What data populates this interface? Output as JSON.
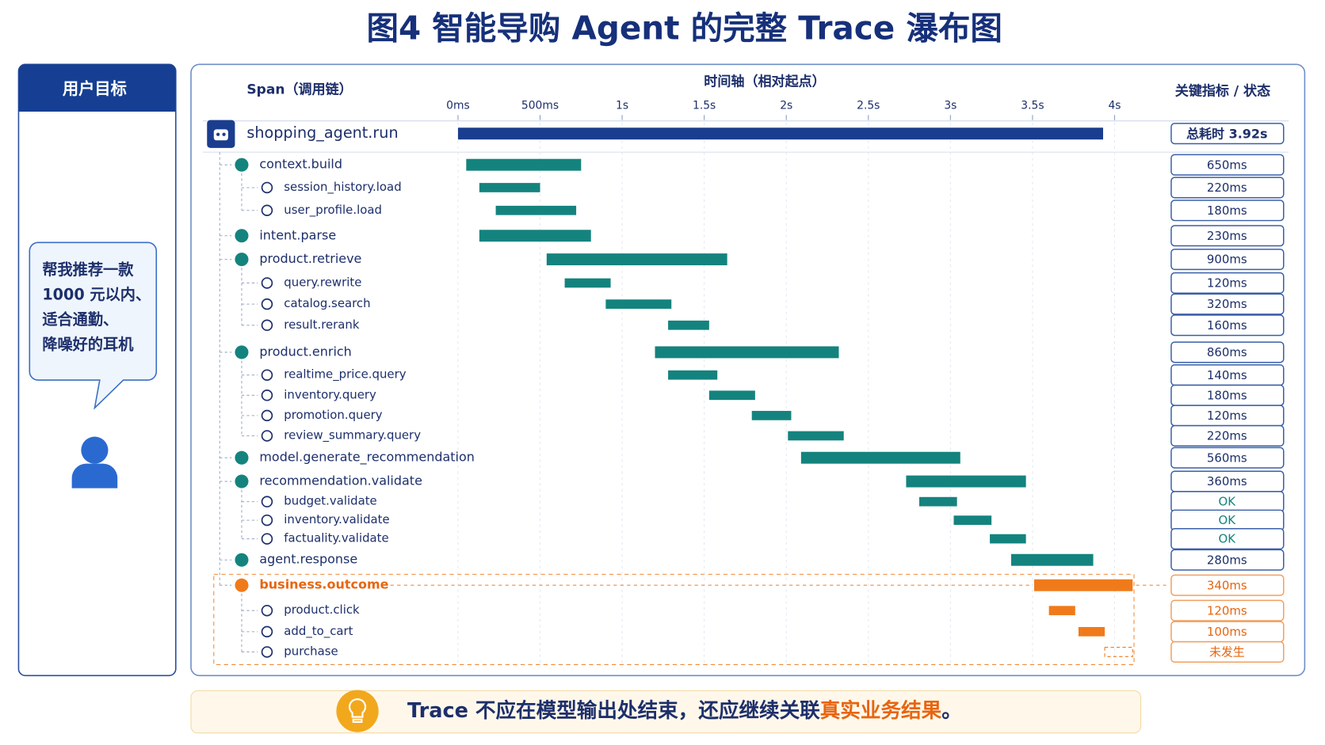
{
  "title": "图4 智能导购 Agent 的完整 Trace 瀑布图",
  "panel": {
    "header": "用户目标",
    "bubble_lines": [
      "帮我推荐一款",
      "1000 元以内、",
      "适合通勤、",
      "降噪好的耳机"
    ]
  },
  "chart_data": {
    "type": "gantt",
    "span_header": "Span（调用链）",
    "axis_title": "时间轴（相对起点）",
    "metric_header": "关键指标 / 状态",
    "xlim": [
      0,
      4000
    ],
    "xticks": [
      {
        "value": 0,
        "label": "0ms"
      },
      {
        "value": 500,
        "label": "500ms"
      },
      {
        "value": 1000,
        "label": "1s"
      },
      {
        "value": 1500,
        "label": "1.5s"
      },
      {
        "value": 2000,
        "label": "2s"
      },
      {
        "value": 2500,
        "label": "2.5s"
      },
      {
        "value": 3000,
        "label": "3s"
      },
      {
        "value": 3500,
        "label": "3.5s"
      },
      {
        "value": 4000,
        "label": "4s"
      }
    ],
    "grid": true,
    "spans": [
      {
        "name": "shopping_agent.run",
        "level": 0,
        "start": 0,
        "end": 3930,
        "color": "#1a3d8f",
        "metric": "总耗时 3.92s"
      },
      {
        "name": "context.build",
        "level": 1,
        "start": 50,
        "end": 750,
        "color": "#14837e",
        "metric": "650ms"
      },
      {
        "name": "session_history.load",
        "level": 2,
        "start": 130,
        "end": 500,
        "color": "#14837e",
        "metric": "220ms"
      },
      {
        "name": "user_profile.load",
        "level": 2,
        "start": 230,
        "end": 720,
        "color": "#14837e",
        "metric": "180ms"
      },
      {
        "name": "intent.parse",
        "level": 1,
        "start": 130,
        "end": 810,
        "color": "#14837e",
        "metric": "230ms"
      },
      {
        "name": "product.retrieve",
        "level": 1,
        "start": 540,
        "end": 1640,
        "color": "#14837e",
        "metric": "900ms"
      },
      {
        "name": "query.rewrite",
        "level": 2,
        "start": 650,
        "end": 930,
        "color": "#14837e",
        "metric": "120ms"
      },
      {
        "name": "catalog.search",
        "level": 2,
        "start": 900,
        "end": 1300,
        "color": "#14837e",
        "metric": "320ms"
      },
      {
        "name": "result.rerank",
        "level": 2,
        "start": 1280,
        "end": 1530,
        "color": "#14837e",
        "metric": "160ms"
      },
      {
        "name": "product.enrich",
        "level": 1,
        "start": 1200,
        "end": 2320,
        "color": "#14837e",
        "metric": "860ms"
      },
      {
        "name": "realtime_price.query",
        "level": 2,
        "start": 1280,
        "end": 1580,
        "color": "#14837e",
        "metric": "140ms"
      },
      {
        "name": "inventory.query",
        "level": 2,
        "start": 1530,
        "end": 1810,
        "color": "#14837e",
        "metric": "180ms"
      },
      {
        "name": "promotion.query",
        "level": 2,
        "start": 1790,
        "end": 2030,
        "color": "#14837e",
        "metric": "120ms"
      },
      {
        "name": "review_summary.query",
        "level": 2,
        "start": 2010,
        "end": 2350,
        "color": "#14837e",
        "metric": "220ms"
      },
      {
        "name": "model.generate_recommendation",
        "level": 1,
        "start": 2090,
        "end": 3060,
        "color": "#14837e",
        "metric": "560ms"
      },
      {
        "name": "recommendation.validate",
        "level": 1,
        "start": 2730,
        "end": 3460,
        "color": "#14837e",
        "metric": "360ms"
      },
      {
        "name": "budget.validate",
        "level": 2,
        "start": 2810,
        "end": 3040,
        "color": "#14837e",
        "metric": "OK"
      },
      {
        "name": "inventory.validate",
        "level": 2,
        "start": 3020,
        "end": 3250,
        "color": "#14837e",
        "metric": "OK"
      },
      {
        "name": "factuality.validate",
        "level": 2,
        "start": 3240,
        "end": 3460,
        "color": "#14837e",
        "metric": "OK"
      },
      {
        "name": "agent.response",
        "level": 1,
        "start": 3370,
        "end": 3870,
        "color": "#14837e",
        "metric": "280ms"
      },
      {
        "name": "business.outcome",
        "level": 1,
        "start": 3510,
        "end": 4110,
        "color": "#f07a1a",
        "metric": "340ms"
      },
      {
        "name": "product.click",
        "level": 2,
        "start": 3600,
        "end": 3760,
        "color": "#f07a1a",
        "metric": "120ms"
      },
      {
        "name": "add_to_cart",
        "level": 2,
        "start": 3780,
        "end": 3940,
        "color": "#f07a1a",
        "metric": "100ms"
      },
      {
        "name": "purchase",
        "level": 2,
        "start": 3940,
        "end": 4110,
        "color": "#f07a1a",
        "metric": "未发生",
        "style": "dashed"
      }
    ]
  },
  "footer": {
    "parts": [
      "Trace 不应在模型输出处结束，还应继续关联",
      "真实业务结果",
      "。"
    ]
  }
}
